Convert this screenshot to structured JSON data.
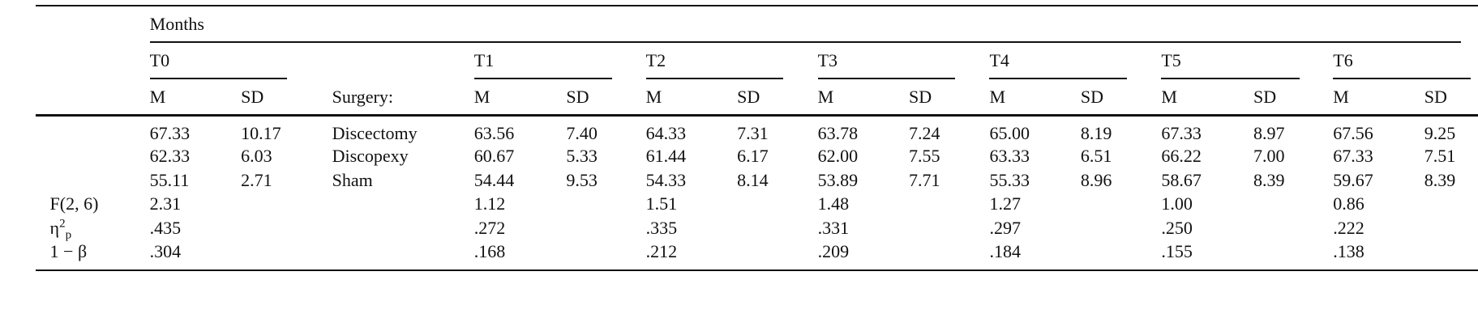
{
  "table": {
    "group_header": "Months",
    "surgery_header": "Surgery:",
    "columns": [
      {
        "time": "T0",
        "m": "M",
        "sd": "SD"
      },
      {
        "time": "T1",
        "m": "M",
        "sd": "SD"
      },
      {
        "time": "T2",
        "m": "M",
        "sd": "SD"
      },
      {
        "time": "T3",
        "m": "M",
        "sd": "SD"
      },
      {
        "time": "T4",
        "m": "M",
        "sd": "SD"
      },
      {
        "time": "T5",
        "m": "M",
        "sd": "SD"
      },
      {
        "time": "T6",
        "m": "M",
        "sd": "SD"
      }
    ],
    "groups": [
      {
        "surgery": "Discectomy",
        "values": [
          [
            "67.33",
            "10.17"
          ],
          [
            "63.56",
            "7.40"
          ],
          [
            "64.33",
            "7.31"
          ],
          [
            "63.78",
            "7.24"
          ],
          [
            "65.00",
            "8.19"
          ],
          [
            "67.33",
            "8.97"
          ],
          [
            "67.56",
            "9.25"
          ]
        ]
      },
      {
        "surgery": "Discopexy",
        "values": [
          [
            "62.33",
            "6.03"
          ],
          [
            "60.67",
            "5.33"
          ],
          [
            "61.44",
            "6.17"
          ],
          [
            "62.00",
            "7.55"
          ],
          [
            "63.33",
            "6.51"
          ],
          [
            "66.22",
            "7.00"
          ],
          [
            "67.33",
            "7.51"
          ]
        ]
      },
      {
        "surgery": "Sham",
        "values": [
          [
            "55.11",
            "2.71"
          ],
          [
            "54.44",
            "9.53"
          ],
          [
            "54.33",
            "8.14"
          ],
          [
            "53.89",
            "7.71"
          ],
          [
            "55.33",
            "8.96"
          ],
          [
            "58.67",
            "8.39"
          ],
          [
            "59.67",
            "8.39"
          ]
        ]
      }
    ],
    "stats": [
      {
        "label": {
          "text": "F(2, 6)"
        },
        "values": [
          "2.31",
          "1.12",
          "1.51",
          "1.48",
          "1.27",
          "1.00",
          "0.86"
        ]
      },
      {
        "label": {
          "base": "η",
          "sup": "2",
          "sub": "p"
        },
        "values": [
          ".435",
          ".272",
          ".335",
          ".331",
          ".297",
          ".250",
          ".222"
        ]
      },
      {
        "label": {
          "text": "1 − β"
        },
        "values": [
          ".304",
          ".168",
          ".212",
          ".209",
          ".184",
          ".155",
          ".138"
        ]
      }
    ]
  }
}
